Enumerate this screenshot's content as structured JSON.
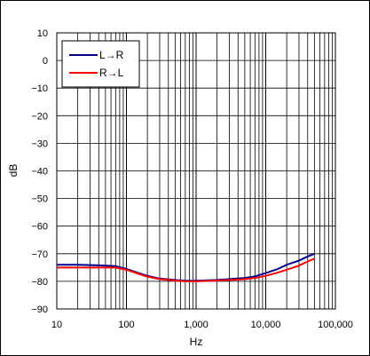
{
  "chart_data": {
    "type": "line",
    "xlabel": "Hz",
    "ylabel": "dB",
    "xscale": "log",
    "xlim": [
      10,
      100000
    ],
    "ylim": [
      -90,
      10
    ],
    "x_tick_labels": [
      "10",
      "100",
      "1,000",
      "10,000",
      "100,000"
    ],
    "y_tick_labels": [
      "10",
      "0",
      "−10",
      "−20",
      "−30",
      "−40",
      "−50",
      "−60",
      "−70",
      "−80",
      "−90"
    ],
    "grid": true,
    "legend_position": "top-left",
    "series": [
      {
        "name": "L→R",
        "color": "#00008b",
        "points": [
          [
            10,
            -74
          ],
          [
            20,
            -74
          ],
          [
            40,
            -74.2
          ],
          [
            70,
            -74.5
          ],
          [
            100,
            -75.5
          ],
          [
            150,
            -77
          ],
          [
            200,
            -78
          ],
          [
            300,
            -79
          ],
          [
            500,
            -79.5
          ],
          [
            700,
            -79.8
          ],
          [
            1000,
            -79.8
          ],
          [
            2000,
            -79.5
          ],
          [
            3000,
            -79.2
          ],
          [
            5000,
            -78.8
          ],
          [
            7000,
            -78.2
          ],
          [
            10000,
            -77
          ],
          [
            15000,
            -75.5
          ],
          [
            20000,
            -74
          ],
          [
            30000,
            -72.5
          ],
          [
            40000,
            -71
          ],
          [
            50000,
            -70
          ]
        ]
      },
      {
        "name": "R→L",
        "color": "#ff0000",
        "points": [
          [
            10,
            -75
          ],
          [
            20,
            -75
          ],
          [
            40,
            -75
          ],
          [
            70,
            -75
          ],
          [
            100,
            -75.8
          ],
          [
            150,
            -77.3
          ],
          [
            200,
            -78.3
          ],
          [
            300,
            -79.2
          ],
          [
            500,
            -79.7
          ],
          [
            700,
            -80
          ],
          [
            1000,
            -80
          ],
          [
            2000,
            -79.7
          ],
          [
            3000,
            -79.5
          ],
          [
            5000,
            -79.2
          ],
          [
            7000,
            -78.8
          ],
          [
            10000,
            -78
          ],
          [
            15000,
            -76.8
          ],
          [
            20000,
            -75.8
          ],
          [
            30000,
            -74.3
          ],
          [
            40000,
            -72.8
          ],
          [
            50000,
            -71.8
          ]
        ]
      }
    ]
  }
}
